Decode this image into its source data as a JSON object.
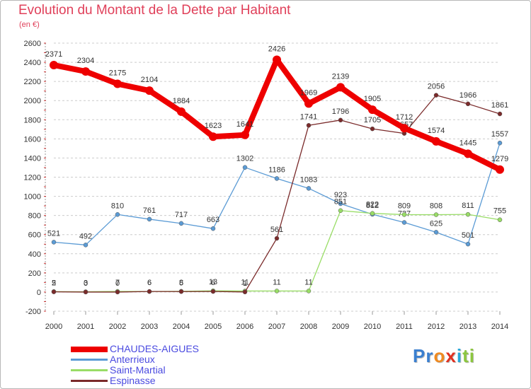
{
  "chart_data": {
    "type": "line",
    "title": "Evolution du Montant de la Dette par Habitant",
    "subtitle": "(en €)",
    "x": [
      "2000",
      "2001",
      "2002",
      "2003",
      "2004",
      "2005",
      "2006",
      "2007",
      "2008",
      "2009",
      "2010",
      "2011",
      "2012",
      "2013",
      "2014"
    ],
    "y_ticks": [
      -200,
      0,
      200,
      400,
      600,
      800,
      1000,
      1200,
      1400,
      1600,
      1800,
      2000,
      2200,
      2400,
      2600
    ],
    "ylim": [
      -200,
      2600
    ],
    "grid": "horizontal dashed",
    "legend_position": "bottom-left",
    "series": [
      {
        "name": "CHAUDES-AIGUES",
        "color": "#ee0000",
        "values": [
          2371,
          2304,
          2175,
          2104,
          1884,
          1623,
          1641,
          2426,
          1969,
          2139,
          1905,
          1712,
          1574,
          1445,
          1279
        ]
      },
      {
        "name": "Anterrieux",
        "color": "#5b9bd5",
        "values": [
          521,
          492,
          810,
          761,
          717,
          663,
          1302,
          1186,
          1083,
          923,
          812,
          727,
          625,
          501,
          1557
        ]
      },
      {
        "name": "Saint-Martial",
        "color": "#99dd66",
        "values": [
          5,
          3,
          7,
          6,
          8,
          13,
          11,
          11,
          11,
          851,
          822,
          809,
          808,
          811,
          755
        ]
      },
      {
        "name": "Espinasse",
        "color": "#7a2a2a",
        "values": [
          2,
          0,
          0,
          6,
          5,
          6,
          1,
          561,
          1741,
          1796,
          1705,
          1657,
          2056,
          1966,
          1861
        ]
      }
    ]
  },
  "logo": {
    "letters": [
      "P",
      "r",
      "o",
      "x",
      "i",
      "t",
      "i"
    ],
    "colors": [
      "#3a7fd0",
      "#3a7fd0",
      "#f08a20",
      "#e03020",
      "#2aa7d8",
      "#8cc63f",
      "#8cc63f"
    ]
  }
}
